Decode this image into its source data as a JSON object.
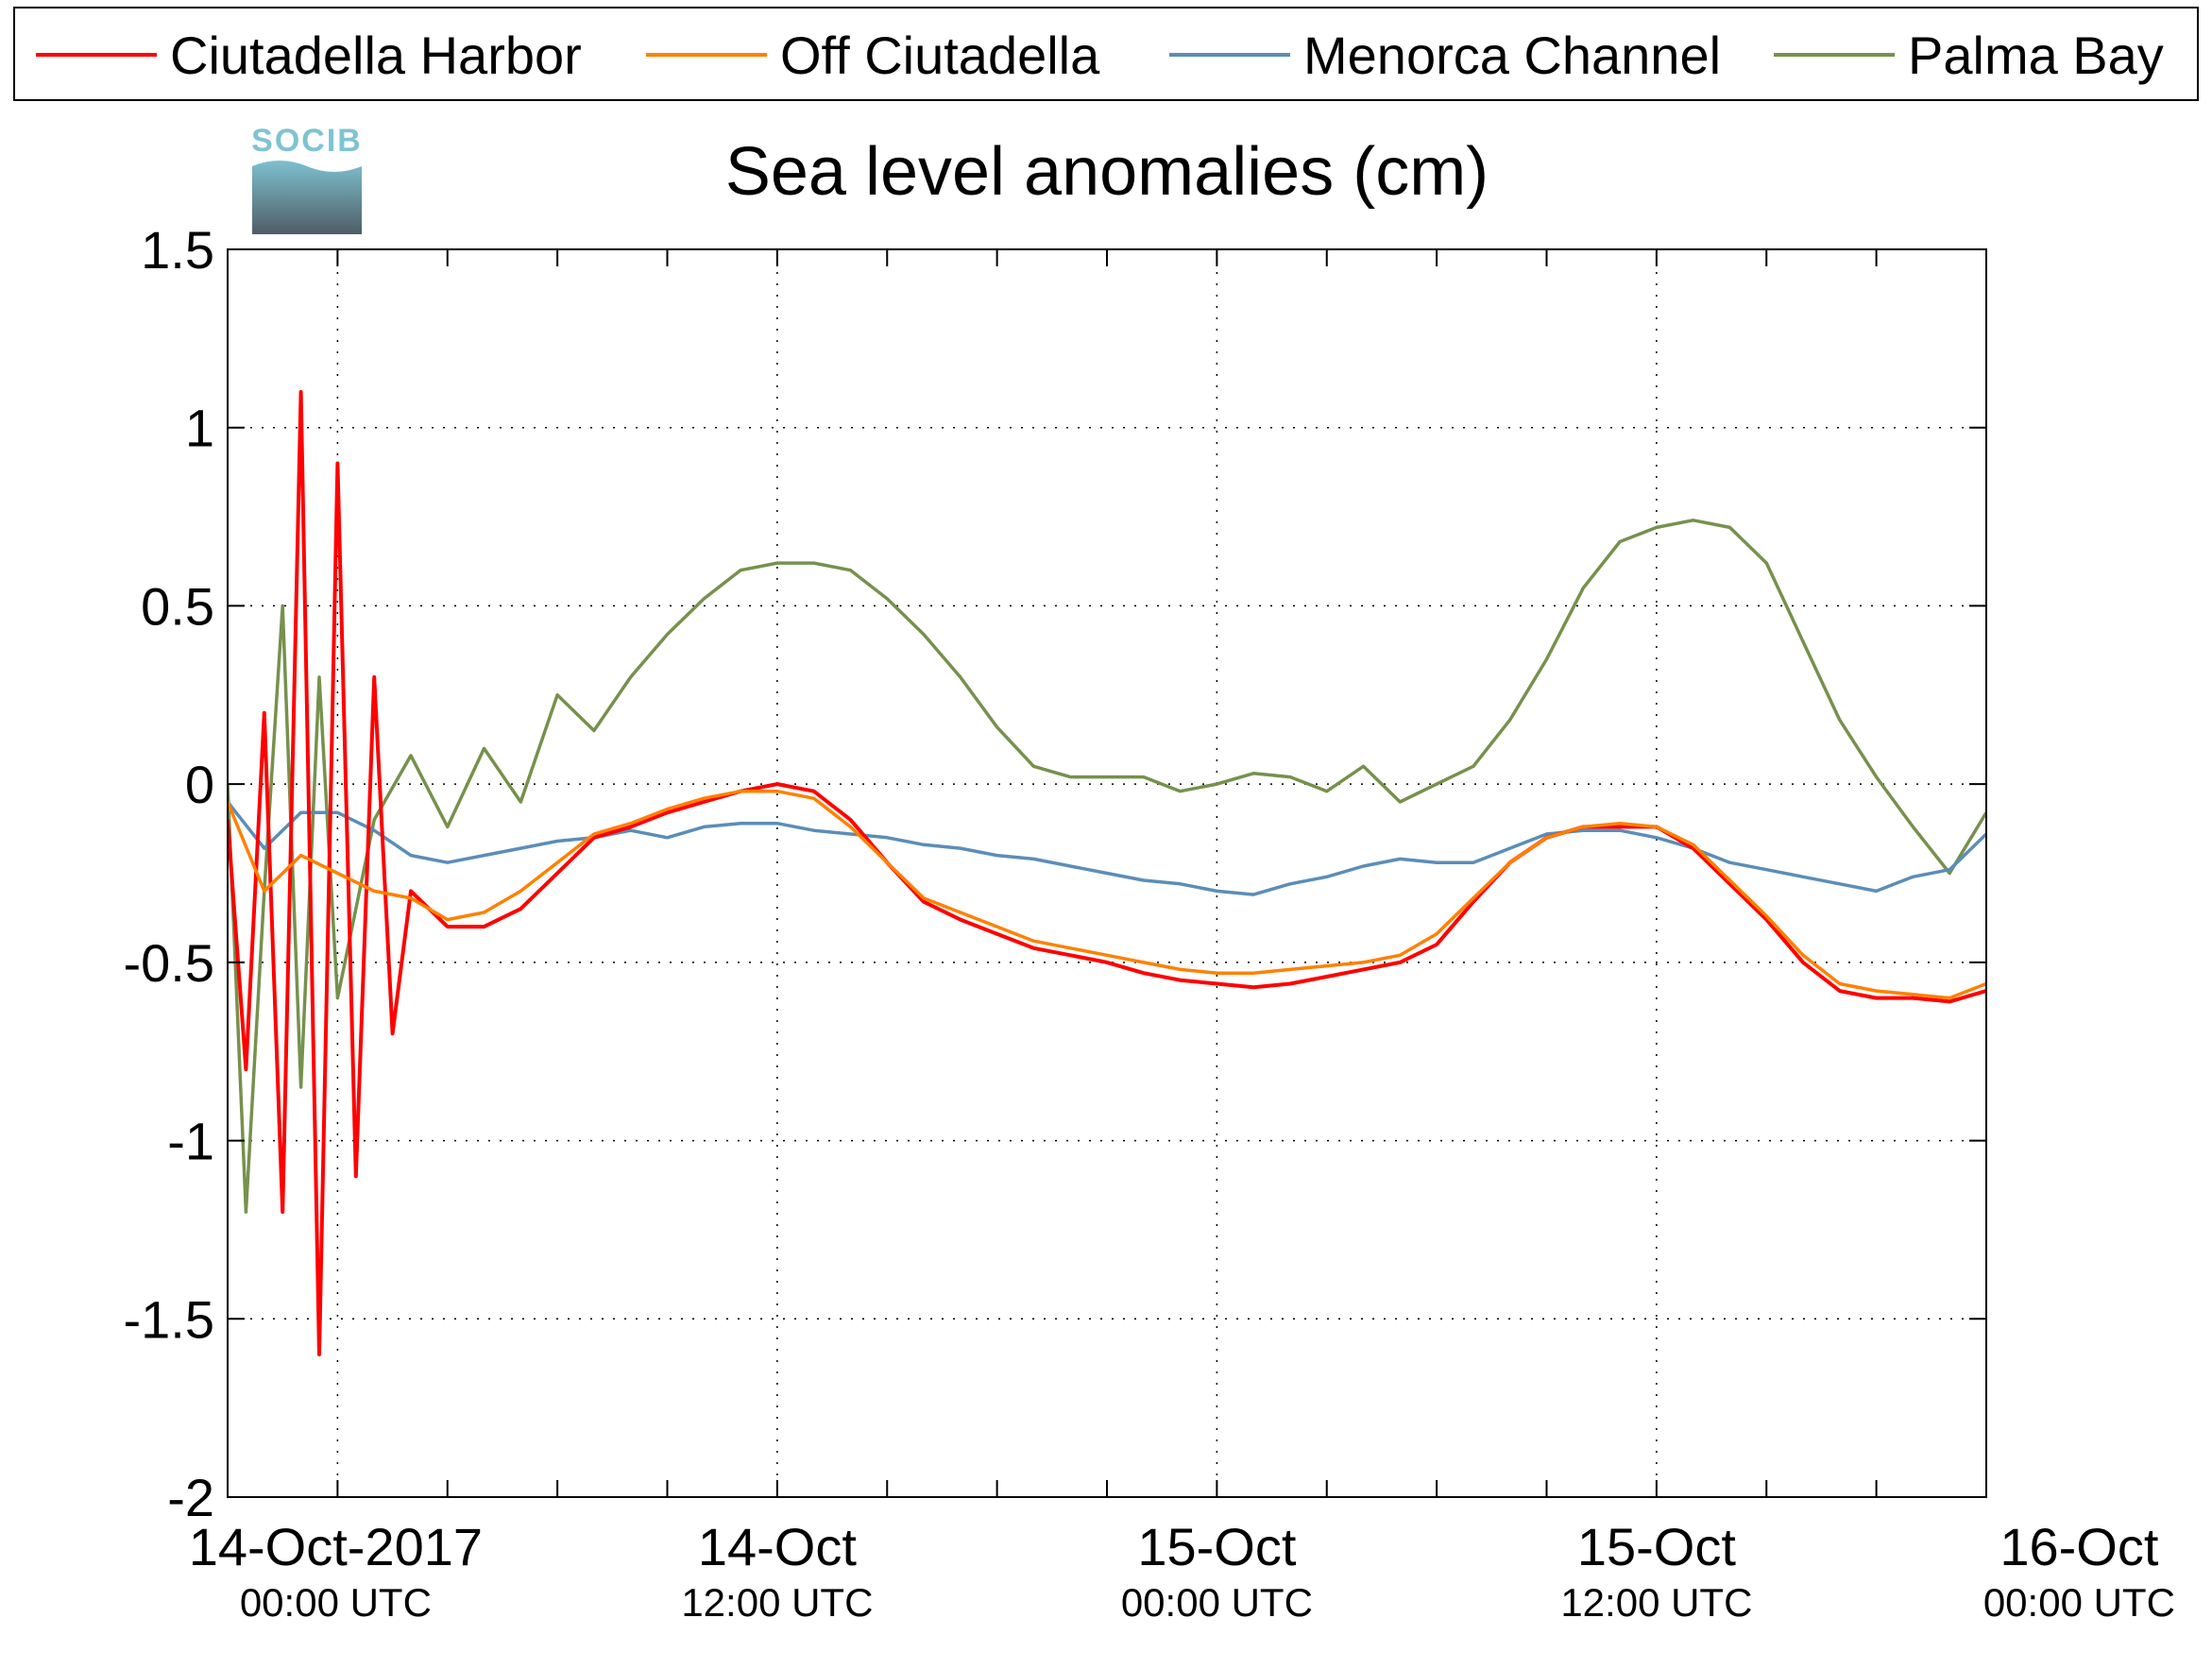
{
  "logo": {
    "text": "SOCIB",
    "top_color": "#7fc3d2",
    "bottom_color": "#4f5d66"
  },
  "chart_data": {
    "type": "line",
    "title": "Sea level anomalies (cm)",
    "xlabel": "",
    "ylabel": "",
    "ylim": [
      -2,
      1.5
    ],
    "yticks": [
      -2,
      -1.5,
      -1,
      -0.5,
      0,
      0.5,
      1,
      1.5
    ],
    "xlim_hours": [
      -3,
      45
    ],
    "xticks": [
      {
        "main": "14-Oct-2017",
        "sub": "00:00 UTC"
      },
      {
        "main": "14-Oct",
        "sub": "12:00 UTC"
      },
      {
        "main": "15-Oct",
        "sub": "00:00 UTC"
      },
      {
        "main": "15-Oct",
        "sub": "12:00 UTC"
      },
      {
        "main": "16-Oct",
        "sub": "00:00 UTC"
      }
    ],
    "grid": true,
    "legend_position": "top",
    "series": [
      {
        "name": "Ciutadella Harbor",
        "color": "#ff0000",
        "x": [
          -3,
          -2.5,
          -2,
          -1.5,
          -1,
          -0.5,
          0,
          0.5,
          1,
          1.5,
          2,
          3,
          4,
          5,
          6,
          7,
          8,
          9,
          10,
          11,
          12,
          13,
          14,
          15,
          16,
          17,
          18,
          19,
          20,
          21,
          22,
          23,
          24,
          25,
          26,
          27,
          28,
          29,
          30,
          31,
          32,
          33,
          34,
          35,
          36,
          37,
          38,
          39,
          40,
          41,
          42,
          43,
          44,
          45
        ],
        "y": [
          -0.1,
          -0.8,
          0.2,
          -1.2,
          1.1,
          -1.6,
          0.9,
          -1.1,
          0.3,
          -0.7,
          -0.3,
          -0.4,
          -0.4,
          -0.35,
          -0.25,
          -0.15,
          -0.12,
          -0.08,
          -0.05,
          -0.02,
          0,
          -0.02,
          -0.1,
          -0.22,
          -0.33,
          -0.38,
          -0.42,
          -0.46,
          -0.48,
          -0.5,
          -0.53,
          -0.55,
          -0.56,
          -0.57,
          -0.56,
          -0.54,
          -0.52,
          -0.5,
          -0.45,
          -0.33,
          -0.22,
          -0.15,
          -0.12,
          -0.12,
          -0.12,
          -0.18,
          -0.28,
          -0.38,
          -0.5,
          -0.58,
          -0.6,
          -0.6,
          -0.61,
          -0.58
        ]
      },
      {
        "name": "Off Ciutadella",
        "color": "#ff8000",
        "x": [
          -3,
          -2,
          -1,
          0,
          1,
          2,
          3,
          4,
          5,
          6,
          7,
          8,
          9,
          10,
          11,
          12,
          13,
          14,
          15,
          16,
          17,
          18,
          19,
          20,
          21,
          22,
          23,
          24,
          25,
          26,
          27,
          28,
          29,
          30,
          31,
          32,
          33,
          34,
          35,
          36,
          37,
          38,
          39,
          40,
          41,
          42,
          43,
          44,
          45
        ],
        "y": [
          -0.05,
          -0.3,
          -0.2,
          -0.25,
          -0.3,
          -0.32,
          -0.38,
          -0.36,
          -0.3,
          -0.22,
          -0.14,
          -0.11,
          -0.07,
          -0.04,
          -0.02,
          -0.02,
          -0.04,
          -0.12,
          -0.22,
          -0.32,
          -0.36,
          -0.4,
          -0.44,
          -0.46,
          -0.48,
          -0.5,
          -0.52,
          -0.53,
          -0.53,
          -0.52,
          -0.51,
          -0.5,
          -0.48,
          -0.42,
          -0.32,
          -0.22,
          -0.15,
          -0.12,
          -0.11,
          -0.12,
          -0.17,
          -0.27,
          -0.37,
          -0.48,
          -0.56,
          -0.58,
          -0.59,
          -0.6,
          -0.56
        ]
      },
      {
        "name": "Menorca Channel",
        "color": "#5b8db8",
        "x": [
          -3,
          -2,
          -1,
          0,
          1,
          2,
          3,
          4,
          5,
          6,
          7,
          8,
          9,
          10,
          11,
          12,
          13,
          14,
          15,
          16,
          17,
          18,
          19,
          20,
          21,
          22,
          23,
          24,
          25,
          26,
          27,
          28,
          29,
          30,
          31,
          32,
          33,
          34,
          35,
          36,
          37,
          38,
          39,
          40,
          41,
          42,
          43,
          44,
          45
        ],
        "y": [
          -0.05,
          -0.18,
          -0.08,
          -0.08,
          -0.13,
          -0.2,
          -0.22,
          -0.2,
          -0.18,
          -0.16,
          -0.15,
          -0.13,
          -0.15,
          -0.12,
          -0.11,
          -0.11,
          -0.13,
          -0.14,
          -0.15,
          -0.17,
          -0.18,
          -0.2,
          -0.21,
          -0.23,
          -0.25,
          -0.27,
          -0.28,
          -0.3,
          -0.31,
          -0.28,
          -0.26,
          -0.23,
          -0.21,
          -0.22,
          -0.22,
          -0.18,
          -0.14,
          -0.13,
          -0.13,
          -0.15,
          -0.18,
          -0.22,
          -0.24,
          -0.26,
          -0.28,
          -0.3,
          -0.26,
          -0.24,
          -0.14
        ]
      },
      {
        "name": "Palma Bay",
        "color": "#76914d",
        "x": [
          -3,
          -2.5,
          -2,
          -1.5,
          -1,
          -0.5,
          0,
          1,
          2,
          3,
          4,
          5,
          6,
          7,
          8,
          9,
          10,
          11,
          12,
          13,
          14,
          15,
          16,
          17,
          18,
          19,
          20,
          21,
          22,
          23,
          24,
          25,
          26,
          27,
          28,
          29,
          30,
          31,
          32,
          33,
          34,
          35,
          36,
          37,
          38,
          39,
          40,
          41,
          42,
          43,
          44,
          45
        ],
        "y": [
          0,
          -1.2,
          -0.3,
          0.5,
          -0.85,
          0.3,
          -0.6,
          -0.1,
          0.08,
          -0.12,
          0.1,
          -0.05,
          0.25,
          0.15,
          0.3,
          0.42,
          0.52,
          0.6,
          0.62,
          0.62,
          0.6,
          0.52,
          0.42,
          0.3,
          0.16,
          0.05,
          0.02,
          0.02,
          0.02,
          -0.02,
          0.0,
          0.03,
          0.02,
          -0.02,
          0.05,
          -0.05,
          0.0,
          0.05,
          0.18,
          0.35,
          0.55,
          0.68,
          0.72,
          0.74,
          0.72,
          0.62,
          0.4,
          0.18,
          0.02,
          -0.12,
          -0.25,
          -0.08
        ]
      }
    ]
  }
}
